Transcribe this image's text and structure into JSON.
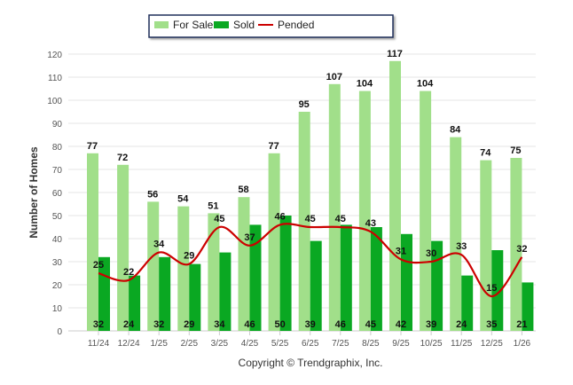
{
  "chart_data": {
    "type": "bar",
    "title": "",
    "xlabel": "",
    "ylabel": "Number of Homes",
    "ylim": [
      0,
      120
    ],
    "yticks": [
      0,
      10,
      20,
      30,
      40,
      50,
      60,
      70,
      80,
      90,
      100,
      110,
      120
    ],
    "grid": true,
    "legend_position": "top-center",
    "categories": [
      "11/24",
      "12/24",
      "1/25",
      "2/25",
      "3/25",
      "4/25",
      "5/25",
      "6/25",
      "7/25",
      "8/25",
      "9/25",
      "10/25",
      "11/25",
      "12/25",
      "1/26"
    ],
    "series": [
      {
        "name": "For Sale",
        "kind": "bar",
        "color": "#a1df8a",
        "values": [
          77,
          72,
          56,
          54,
          51,
          58,
          77,
          95,
          107,
          104,
          117,
          104,
          84,
          74,
          75
        ]
      },
      {
        "name": "Sold",
        "kind": "bar",
        "color": "#0aa822",
        "values": [
          32,
          24,
          32,
          29,
          34,
          46,
          50,
          39,
          46,
          45,
          42,
          39,
          24,
          35,
          21
        ]
      },
      {
        "name": "Pended",
        "kind": "line",
        "color": "#cc0000",
        "values": [
          25,
          22,
          34,
          29,
          45,
          37,
          46,
          45,
          45,
          43,
          31,
          30,
          33,
          15,
          32
        ]
      }
    ]
  },
  "footer": {
    "copyright": "Copyright © Trendgraphix, Inc."
  }
}
